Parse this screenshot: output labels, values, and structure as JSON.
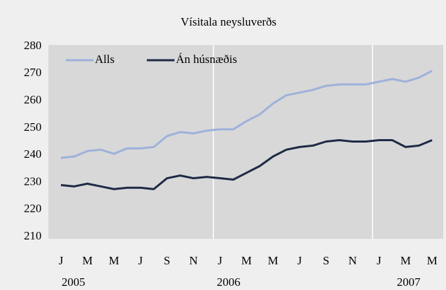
{
  "chart_data": {
    "type": "line",
    "title": "Vísitala neysluverðs",
    "categories": [
      "J",
      null,
      "M",
      null,
      "M",
      null,
      "J",
      null,
      "S",
      null,
      "N",
      null,
      "J",
      null,
      "M",
      null,
      "M",
      null,
      "J",
      null,
      "S",
      null,
      "N",
      null,
      "J",
      null,
      "M",
      null,
      "M"
    ],
    "year_labels": [
      "2005",
      "2006",
      "2007"
    ],
    "series": [
      {
        "name": "Alls",
        "color": "#9db1da",
        "values": [
          239,
          239.5,
          241.5,
          242,
          240.5,
          242.5,
          242.5,
          243,
          247,
          248.5,
          248,
          249,
          249.5,
          249.5,
          252.5,
          255,
          259,
          262,
          263,
          264,
          265.5,
          266,
          266,
          266,
          267,
          268,
          267,
          268.5,
          271
        ]
      },
      {
        "name": "Án húsnæðis",
        "color": "#1e2a45",
        "values": [
          229,
          228.5,
          229.5,
          228.5,
          227.5,
          228,
          228,
          227.5,
          231.5,
          232.5,
          231.5,
          232,
          231.5,
          231,
          233.5,
          236,
          239.5,
          242,
          243,
          243.5,
          245,
          245.5,
          245,
          245,
          245.5,
          245.5,
          243,
          243.5,
          245.5
        ]
      }
    ],
    "ylim": [
      210,
      280
    ],
    "yticks": [
      210,
      220,
      230,
      240,
      250,
      260,
      270,
      280
    ],
    "legend": "top-left"
  }
}
